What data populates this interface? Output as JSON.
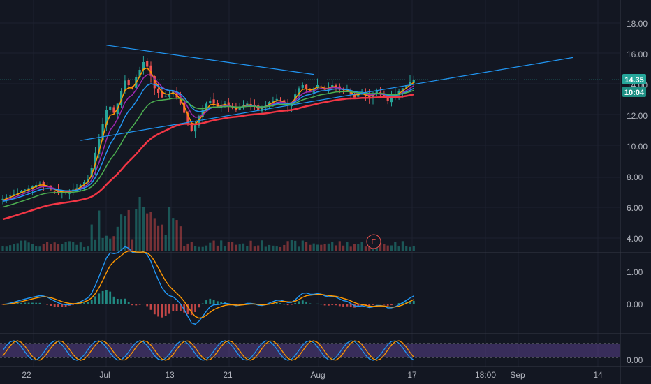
{
  "chart_data": {
    "type": "candlestick",
    "price_axis": {
      "ticks": [
        "18.00",
        "16.00",
        "14.00",
        "12.00",
        "10.00",
        "8.00",
        "6.00",
        "4.00"
      ],
      "values": [
        18,
        16,
        14,
        12,
        10,
        8,
        6,
        4
      ]
    },
    "macd_axis": {
      "ticks": [
        "1.00",
        "0.00"
      ],
      "values": [
        1,
        0
      ]
    },
    "rsi_axis": {
      "ticks": [
        "0.00"
      ]
    },
    "time_axis": {
      "labels": [
        "22",
        "Jul",
        "13",
        "21",
        "Aug",
        "17",
        "18:00",
        "Sep",
        "14"
      ]
    },
    "last_price": "14.35",
    "countdown": "10:04",
    "earnings_marker": "E",
    "price_series": [
      6.6,
      6.7,
      6.8,
      6.9,
      7.0,
      7.1,
      7.2,
      7.3,
      7.4,
      7.5,
      7.6,
      7.5,
      7.4,
      7.2,
      7.1,
      7.0,
      7.0,
      7.0,
      7.1,
      7.2,
      7.3,
      7.5,
      7.7,
      7.9,
      8.6,
      9.6,
      10.5,
      11.5,
      12.4,
      12.6,
      12.2,
      12.8,
      13.6,
      14.3,
      14.0,
      13.8,
      14.5,
      15.0,
      15.5,
      15.2,
      14.6,
      13.8,
      13.5,
      13.2,
      13.3,
      13.4,
      13.6,
      13.2,
      12.8,
      12.2,
      11.5,
      11.0,
      11.4,
      12.0,
      12.4,
      12.8,
      13.0,
      12.8,
      12.6,
      12.7,
      12.8,
      12.6,
      12.5,
      12.4,
      12.6,
      12.7,
      12.8,
      12.7,
      12.6,
      12.4,
      12.5,
      12.7,
      12.9,
      13.0,
      13.1,
      13.0,
      12.8,
      12.7,
      12.9,
      13.4,
      13.8,
      14.0,
      13.8,
      13.6,
      13.8,
      14.0,
      13.9,
      13.7,
      13.8,
      14.0,
      13.9,
      13.7,
      13.6,
      13.7,
      13.4,
      13.2,
      13.4,
      13.5,
      13.3,
      13.2,
      13.4,
      13.6,
      13.4,
      13.3,
      13.0,
      13.2,
      13.4,
      13.6,
      13.8,
      14.0,
      14.2,
      14.35
    ],
    "ma_series": [
      {
        "name": "",
        "color": "#ff9800",
        "period": 3
      },
      {
        "name": "",
        "color": "#9c27b0",
        "period": 6
      },
      {
        "name": "",
        "color": "#2196f3",
        "period": 10
      },
      {
        "name": "",
        "color": "#4caf50",
        "period": 18
      },
      {
        "name": "",
        "color": "#f23645",
        "period": 40
      }
    ],
    "trendlines": [
      {
        "color": "#2196f3",
        "from": [
          28,
          16.6
        ],
        "to": [
          84,
          14.7
        ]
      },
      {
        "color": "#2196f3",
        "from": [
          21,
          10.4
        ],
        "to": [
          154,
          15.8
        ]
      }
    ],
    "colors": {
      "up": "#26a69a",
      "down": "#ef5350",
      "rsi_band": "#7e57c2"
    }
  }
}
